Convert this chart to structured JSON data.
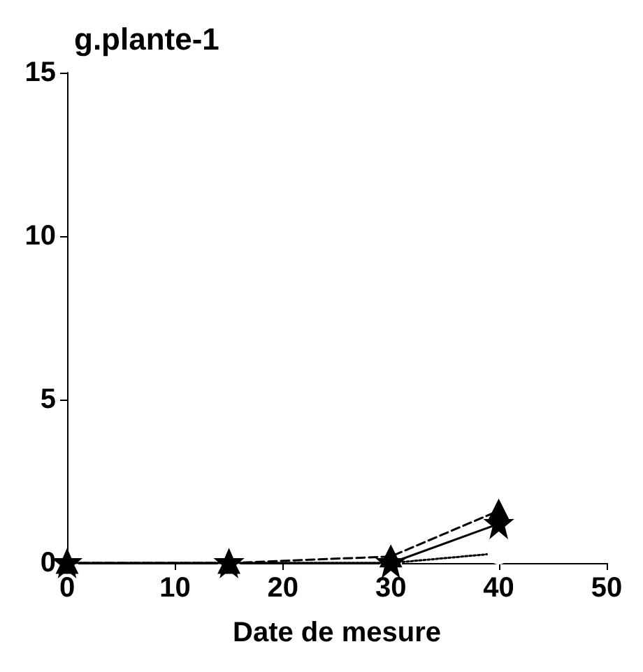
{
  "chart_data": {
    "type": "line",
    "title": "g.plante-1",
    "xlabel": "Date de mesure",
    "xlim": [
      0,
      50
    ],
    "xticks": [
      0,
      10,
      20,
      30,
      40,
      50
    ],
    "ylim": [
      0,
      15
    ],
    "yticks": [
      0,
      5,
      10,
      15
    ],
    "grid": false,
    "series": [
      {
        "color": "#000000",
        "marker": "star",
        "line_style": "solid",
        "x": [
          0,
          15,
          30,
          40
        ],
        "values": [
          0,
          0,
          0,
          1.2
        ]
      },
      {
        "color": "#000000",
        "marker": "triangle",
        "line_style": "dashed",
        "x": [
          0,
          15,
          30,
          40
        ],
        "values": [
          0,
          0,
          0.2,
          1.6
        ]
      },
      {
        "color": "#000000",
        "marker": "circle",
        "line_style": "dotted",
        "x": [
          0,
          15,
          30,
          40
        ],
        "values": [
          0,
          0,
          0,
          0.3
        ]
      }
    ]
  }
}
